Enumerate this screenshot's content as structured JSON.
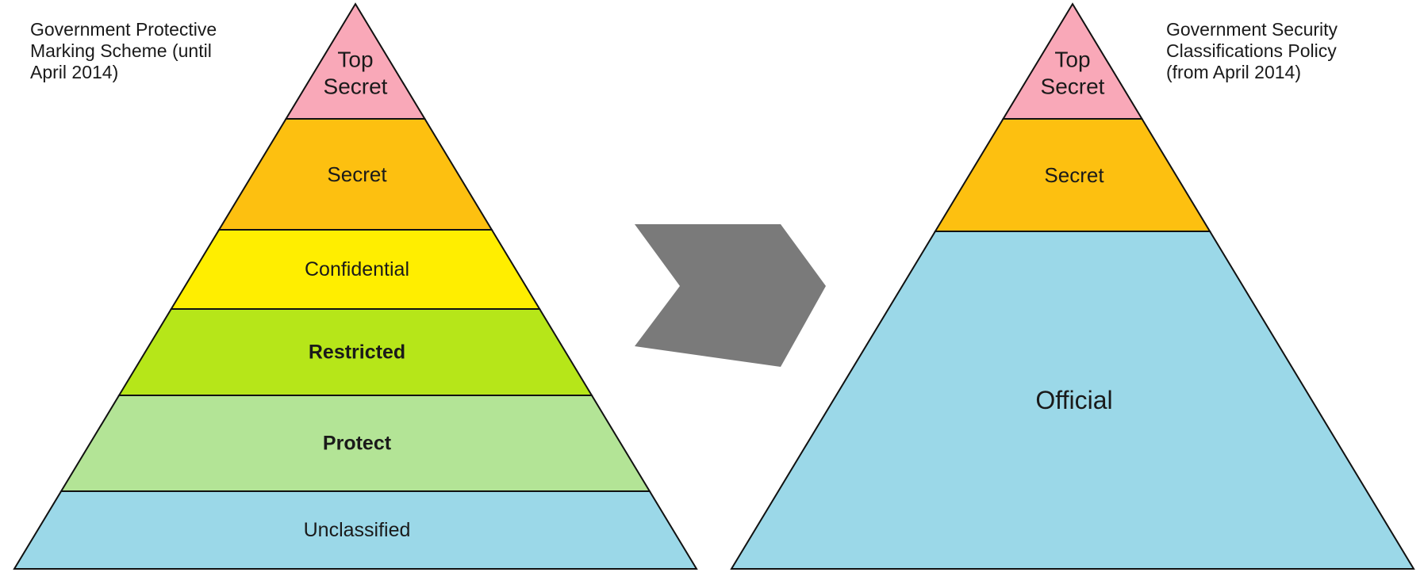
{
  "left_pyramid": {
    "caption": "Government Protective\nMarking Scheme (until\nApril 2014)",
    "levels": [
      {
        "label": "Top\nSecret",
        "color": "#f9a8b8",
        "bold": false
      },
      {
        "label": "Secret",
        "color": "#fdc010",
        "bold": false
      },
      {
        "label": "Confidential",
        "color": "#ffee00",
        "bold": false
      },
      {
        "label": "Restricted",
        "color": "#b6e619",
        "bold": true
      },
      {
        "label": "Protect",
        "color": "#b3e496",
        "bold": true
      },
      {
        "label": "Unclassified",
        "color": "#9bd8e8",
        "bold": false
      }
    ]
  },
  "right_pyramid": {
    "caption": "Government Security\nClassifications Policy\n(from April 2014)",
    "levels": [
      {
        "label": "Top\nSecret",
        "color": "#f9a8b8",
        "bold": false
      },
      {
        "label": "Secret",
        "color": "#fdc010",
        "bold": false
      },
      {
        "label": "Official",
        "color": "#9bd8e8",
        "bold": false
      }
    ]
  },
  "arrow": {
    "color": "#7a7a7a",
    "icon": "chevron-arrow-icon"
  }
}
